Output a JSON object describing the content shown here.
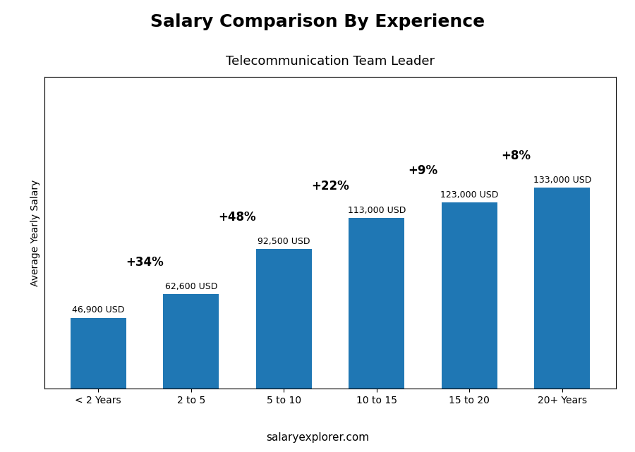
{
  "chart_data": {
    "type": "bar",
    "title": "Salary Comparison By Experience",
    "subtitle": "Telecommunication Team Leader",
    "ylabel": "Average Yearly Salary",
    "footer": "salaryexplorer.com",
    "categories": [
      "< 2 Years",
      "2 to 5",
      "5 to 10",
      "10 to 15",
      "15 to 20",
      "20+ Years"
    ],
    "values": [
      46900,
      62600,
      92500,
      113000,
      123000,
      133000
    ],
    "value_labels": [
      "46,900 USD",
      "62,600 USD",
      "92,500 USD",
      "113,000 USD",
      "123,000 USD",
      "133,000 USD"
    ],
    "data_labels": true,
    "annotations": [
      "+34%",
      "+48%",
      "+22%",
      "+9%",
      "+8%"
    ],
    "ylim": [
      0,
      206150
    ],
    "tick_labels": "x",
    "grid": false
  }
}
